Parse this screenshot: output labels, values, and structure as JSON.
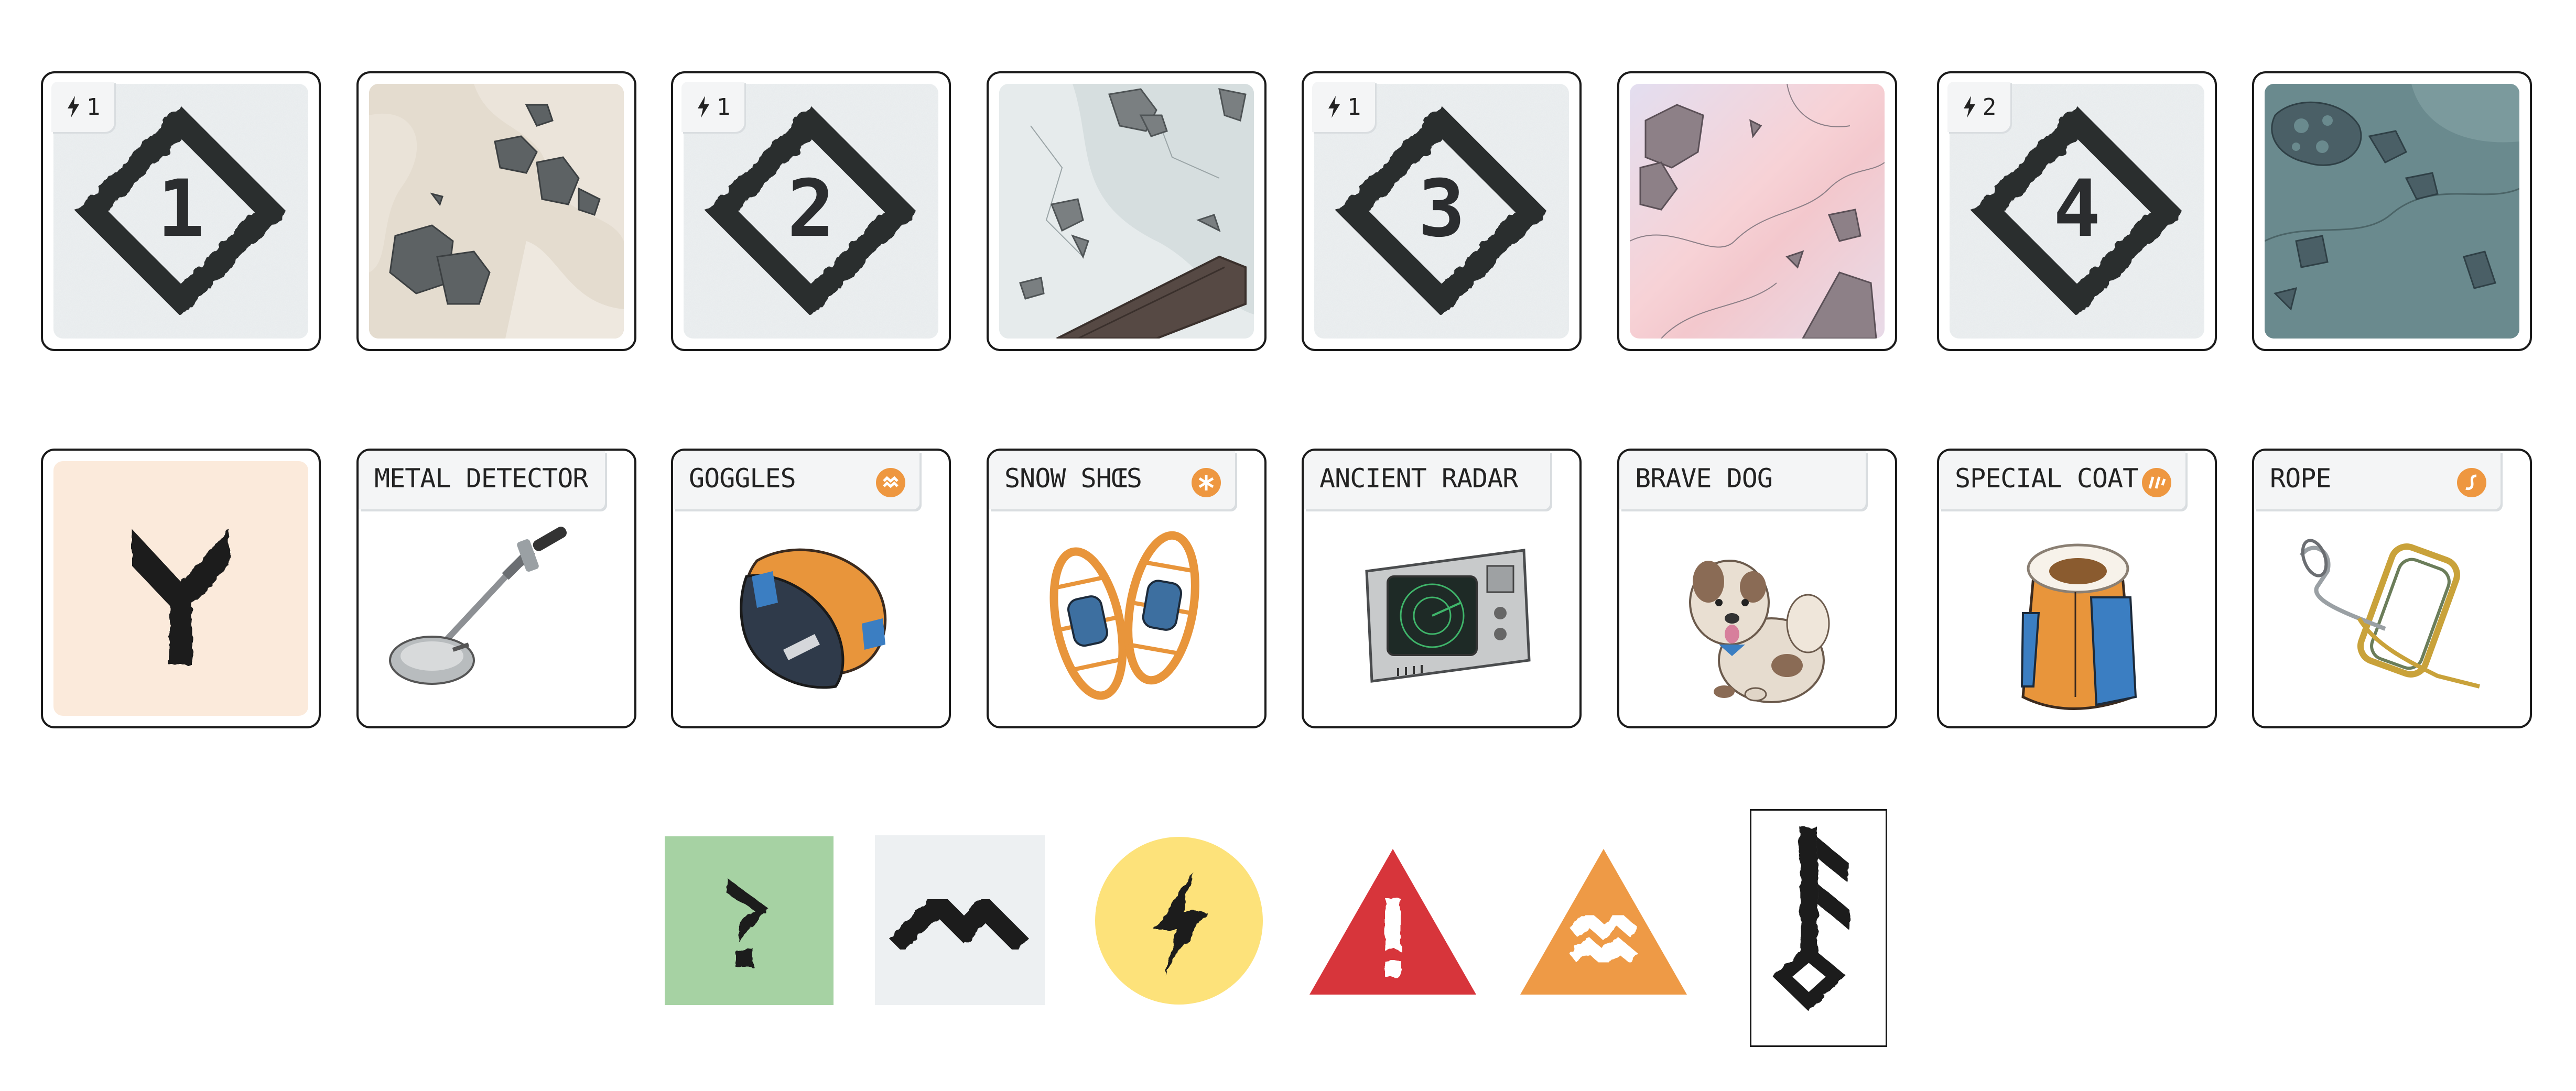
{
  "location_cards": [
    {
      "kind": "number",
      "cost": "1",
      "number": "1"
    },
    {
      "kind": "terrain",
      "theme": "sand"
    },
    {
      "kind": "number",
      "cost": "1",
      "number": "2"
    },
    {
      "kind": "terrain",
      "theme": "ice"
    },
    {
      "kind": "number",
      "cost": "1",
      "number": "3"
    },
    {
      "kind": "terrain",
      "theme": "pink"
    },
    {
      "kind": "number",
      "cost": "2",
      "number": "4"
    },
    {
      "kind": "terrain",
      "theme": "teal"
    }
  ],
  "item_cards": [
    {
      "kind": "symbol",
      "symbol": "Y-branch"
    },
    {
      "title": "METAL DETECTOR",
      "badge": null
    },
    {
      "title": "GOGGLES",
      "badge": "wave-badge-icon"
    },
    {
      "title": "SNOW SHŒS",
      "badge": "snowflake-badge-icon"
    },
    {
      "title": "ANCIENT RADAR",
      "badge": null
    },
    {
      "title": "BRAVE DOG",
      "badge": null
    },
    {
      "title": "SPECIAL COAT",
      "badge": "slash-badge-icon"
    },
    {
      "title": "ROPE",
      "badge": "s-curve-badge-icon"
    }
  ],
  "tokens": [
    "question-token",
    "mountain-token",
    "energy-token",
    "danger-token",
    "avalanche-token",
    "key-rune-card"
  ],
  "colors": {
    "card_border": "#1a1a1a",
    "badge_orange": "#ee9740",
    "token_green": "#a6d2a3",
    "token_grey": "#edf0f2",
    "token_yellow": "#fde27a",
    "token_red": "#d7353b",
    "token_orange": "#ee9a46"
  }
}
